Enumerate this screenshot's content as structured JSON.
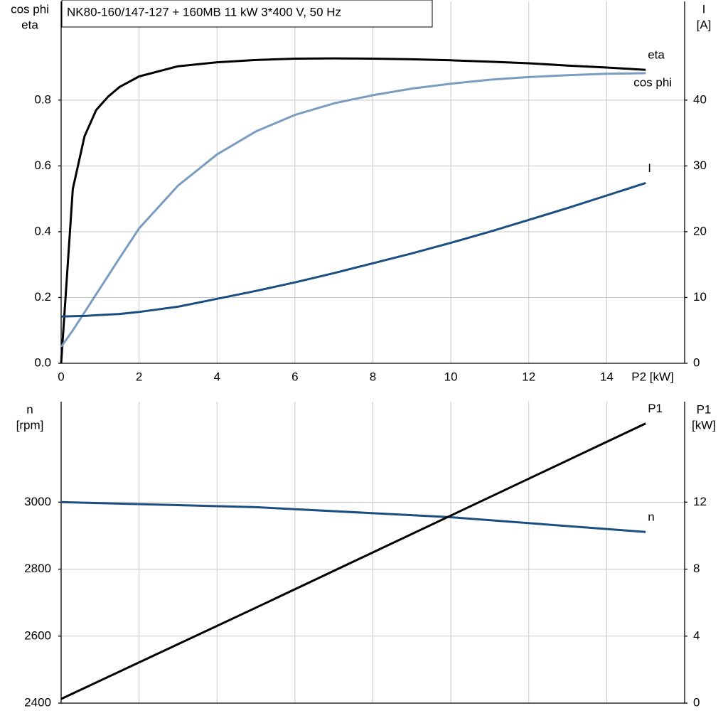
{
  "chart_data": [
    {
      "type": "line",
      "title": "NK80-160/147-127 + 160MB   11 kW   3*400 V, 50 Hz",
      "ylabel": [
        "cos phi",
        "eta"
      ],
      "y2label": [
        "I",
        "[A]"
      ],
      "xlabel": "P2 [kW]",
      "x": [
        0,
        0.3,
        0.6,
        0.9,
        1.2,
        1.5,
        2,
        3,
        4,
        5,
        6,
        7,
        8,
        9,
        10,
        11,
        12,
        13,
        14,
        15
      ],
      "series": [
        {
          "name": "eta",
          "color": "#000000",
          "values": [
            0,
            0.53,
            0.69,
            0.77,
            0.81,
            0.84,
            0.872,
            0.903,
            0.915,
            0.922,
            0.926,
            0.927,
            0.926,
            0.924,
            0.921,
            0.917,
            0.912,
            0.905,
            0.899,
            0.892
          ]
        },
        {
          "name": "cos phi",
          "color": "#7a9cc0",
          "values": [
            0.05,
            0.1,
            0.155,
            0.21,
            0.265,
            0.32,
            0.41,
            0.54,
            0.635,
            0.705,
            0.755,
            0.79,
            0.815,
            0.835,
            0.85,
            0.862,
            0.87,
            0.876,
            0.88,
            0.882
          ]
        },
        {
          "name": "I",
          "color": "#1a4e80",
          "axis": "y2",
          "values": [
            7.1,
            7.15,
            7.2,
            7.3,
            7.4,
            7.5,
            7.8,
            8.6,
            9.8,
            11,
            12.3,
            13.7,
            15.2,
            16.7,
            18.3,
            20,
            21.8,
            23.6,
            25.5,
            27.4
          ]
        }
      ],
      "xlim": [
        0,
        16
      ],
      "xticks": [
        0,
        2,
        4,
        6,
        8,
        10,
        12,
        14
      ],
      "ylim": [
        0,
        1.1
      ],
      "yticks": [
        {
          "value": 0,
          "label": "0.0"
        },
        0.2,
        0.4,
        0.6,
        0.8
      ],
      "y2lim": [
        0,
        55
      ],
      "y2ticks": [
        0,
        10,
        20,
        30,
        40
      ],
      "grid": true
    },
    {
      "type": "line",
      "ylabel": [
        "n",
        "[rpm]"
      ],
      "y2label": [
        "P1",
        "[kW]"
      ],
      "x": [
        0,
        5,
        10,
        15
      ],
      "series": [
        {
          "name": "n",
          "color": "#1a4e80",
          "values": [
            3000,
            2985,
            2955,
            2911
          ]
        },
        {
          "name": "P1",
          "color": "#000000",
          "axis": "y2",
          "values": [
            0.25,
            5.7,
            11.2,
            16.7
          ]
        }
      ],
      "xlim": [
        0,
        16
      ],
      "xticks": [
        0,
        2,
        4,
        6,
        8,
        10,
        12,
        14
      ],
      "ylim": [
        2400,
        3300
      ],
      "yticks": [
        2400,
        2600,
        2800,
        3000
      ],
      "y2lim": [
        0,
        18
      ],
      "y2ticks": [
        0,
        4,
        8,
        12
      ],
      "grid": true
    }
  ]
}
